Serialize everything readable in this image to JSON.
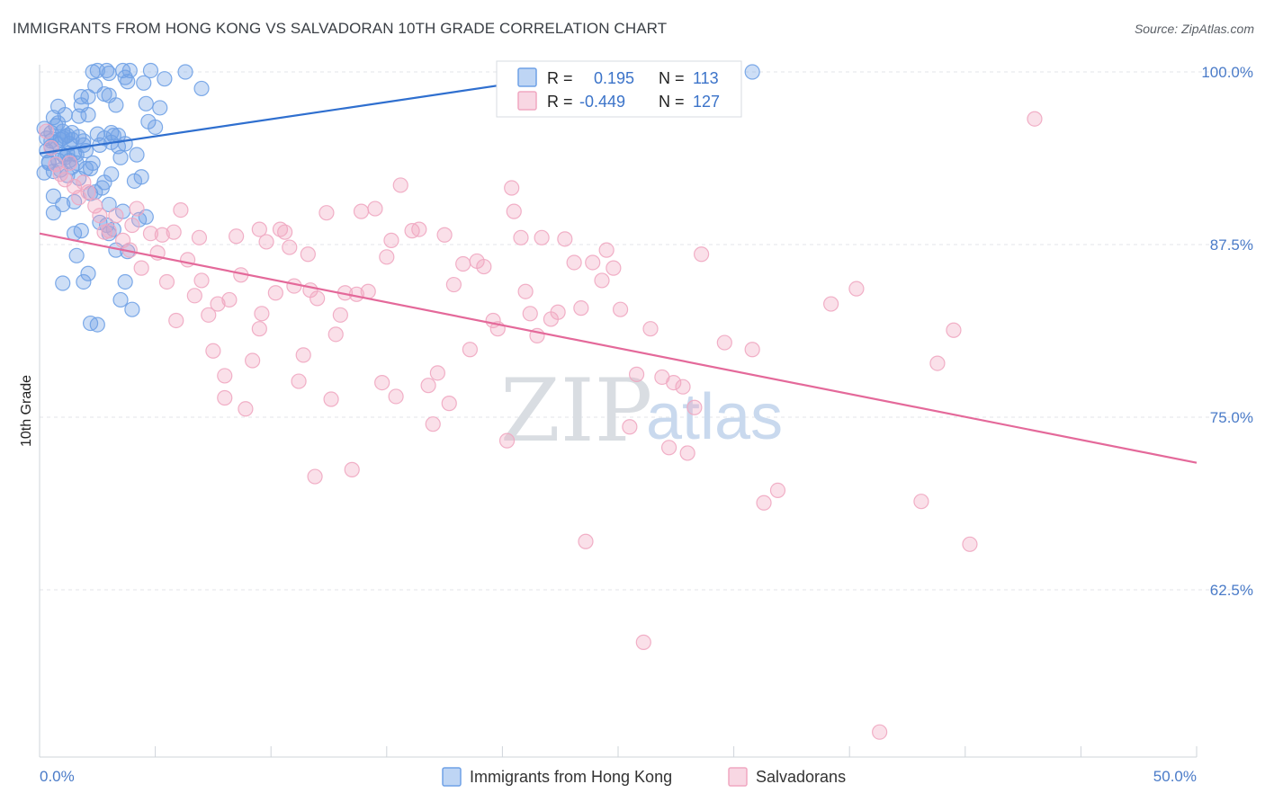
{
  "header": {
    "title": "IMMIGRANTS FROM HONG KONG VS SALVADORAN 10TH GRADE CORRELATION CHART",
    "source": "Source: ZipAtlas.com"
  },
  "watermark": {
    "zip": "ZIP",
    "atlas": "atlas"
  },
  "legend_box": {
    "rows": [
      {
        "r_label": "R =",
        "r_value": "0.195",
        "n_label": "N =",
        "n_value": "113",
        "color": "#6fa1e6"
      },
      {
        "r_label": "R =",
        "r_value": "-0.449",
        "n_label": "N =",
        "n_value": "127",
        "color": "#f0a7c1"
      }
    ]
  },
  "bottom_legend": [
    {
      "label": "Immigrants from Hong Kong",
      "color": "#6fa1e6"
    },
    {
      "label": "Salvadorans",
      "color": "#f0a7c1"
    }
  ],
  "chart_data": {
    "type": "scatter",
    "ylabel": "10th Grade",
    "xlim": [
      0,
      50
    ],
    "ylim": [
      50,
      100
    ],
    "x_ticks_labeled": [
      {
        "value": 0,
        "label": "0.0%"
      },
      {
        "value": 50,
        "label": "50.0%"
      }
    ],
    "y_ticks": [
      {
        "value": 100,
        "label": "100.0%"
      },
      {
        "value": 87.5,
        "label": "87.5%"
      },
      {
        "value": 75,
        "label": "75.0%"
      },
      {
        "value": 62.5,
        "label": "62.5%"
      }
    ],
    "grid": true,
    "series": [
      {
        "name": "Immigrants from Hong Kong",
        "color": "#6fa1e6",
        "trend": {
          "x": [
            0,
            25
          ],
          "y": [
            94.1,
            100.3
          ]
        },
        "points": [
          [
            0.2,
            95.9
          ],
          [
            0.3,
            95.2
          ],
          [
            0.3,
            94.3
          ],
          [
            0.4,
            93.4
          ],
          [
            0.5,
            95.6
          ],
          [
            0.5,
            94.6
          ],
          [
            0.6,
            96.7
          ],
          [
            0.6,
            92.8
          ],
          [
            0.7,
            96.1
          ],
          [
            0.7,
            94.9
          ],
          [
            0.8,
            93.6
          ],
          [
            0.8,
            97.5
          ],
          [
            0.9,
            95.1
          ],
          [
            0.9,
            92.9
          ],
          [
            1.0,
            94.0
          ],
          [
            1.0,
            95.7
          ],
          [
            1.1,
            93.8
          ],
          [
            1.1,
            96.9
          ],
          [
            1.2,
            95.4
          ],
          [
            1.2,
            92.5
          ],
          [
            1.3,
            94.8
          ],
          [
            1.4,
            93.1
          ],
          [
            1.4,
            95.1
          ],
          [
            1.5,
            94.1
          ],
          [
            1.6,
            93.4
          ],
          [
            1.7,
            95.3
          ],
          [
            1.7,
            96.8
          ],
          [
            1.8,
            97.6
          ],
          [
            1.8,
            98.2
          ],
          [
            1.9,
            95.0
          ],
          [
            2.0,
            94.3
          ],
          [
            2.0,
            93.0
          ],
          [
            2.1,
            96.9
          ],
          [
            2.1,
            98.2
          ],
          [
            2.2,
            91.2
          ],
          [
            2.3,
            93.4
          ],
          [
            2.3,
            100.0
          ],
          [
            2.4,
            99.0
          ],
          [
            2.5,
            100.1
          ],
          [
            2.6,
            94.7
          ],
          [
            2.7,
            91.6
          ],
          [
            2.8,
            95.2
          ],
          [
            2.8,
            98.4
          ],
          [
            2.9,
            100.1
          ],
          [
            3.0,
            99.9
          ],
          [
            3.0,
            98.3
          ],
          [
            3.1,
            95.6
          ],
          [
            3.1,
            92.6
          ],
          [
            3.2,
            95.4
          ],
          [
            3.3,
            97.6
          ],
          [
            3.4,
            94.6
          ],
          [
            3.5,
            93.8
          ],
          [
            3.6,
            100.1
          ],
          [
            3.7,
            99.6
          ],
          [
            3.8,
            99.3
          ],
          [
            3.9,
            100.1
          ],
          [
            4.1,
            92.1
          ],
          [
            4.2,
            94.0
          ],
          [
            4.4,
            92.4
          ],
          [
            4.5,
            99.2
          ],
          [
            4.6,
            97.7
          ],
          [
            4.7,
            96.4
          ],
          [
            4.8,
            100.1
          ],
          [
            5.0,
            96.0
          ],
          [
            5.2,
            97.4
          ],
          [
            5.4,
            99.5
          ],
          [
            6.3,
            100.0
          ],
          [
            7.0,
            98.8
          ],
          [
            1.0,
            90.4
          ],
          [
            0.6,
            89.8
          ],
          [
            1.5,
            90.6
          ],
          [
            2.4,
            91.3
          ],
          [
            3.0,
            90.4
          ],
          [
            2.6,
            89.1
          ],
          [
            2.9,
            88.9
          ],
          [
            3.2,
            88.6
          ],
          [
            3.6,
            89.9
          ],
          [
            4.3,
            89.3
          ],
          [
            4.6,
            89.5
          ],
          [
            1.5,
            88.3
          ],
          [
            1.8,
            88.5
          ],
          [
            3.0,
            88.3
          ],
          [
            3.3,
            87.1
          ],
          [
            3.8,
            87.0
          ],
          [
            1.6,
            86.7
          ],
          [
            2.1,
            85.4
          ],
          [
            1.9,
            84.8
          ],
          [
            1.0,
            84.7
          ],
          [
            3.5,
            83.5
          ],
          [
            3.7,
            84.8
          ],
          [
            4.0,
            82.8
          ],
          [
            2.2,
            81.8
          ],
          [
            2.5,
            81.7
          ],
          [
            0.2,
            92.7
          ],
          [
            0.4,
            93.5
          ],
          [
            0.6,
            91.0
          ],
          [
            0.8,
            96.3
          ],
          [
            1.0,
            95.2
          ],
          [
            1.2,
            94.1
          ],
          [
            1.4,
            95.6
          ],
          [
            1.6,
            94.0
          ],
          [
            1.9,
            94.7
          ],
          [
            2.2,
            93.0
          ],
          [
            2.5,
            95.5
          ],
          [
            2.8,
            92.0
          ],
          [
            3.1,
            94.9
          ],
          [
            3.4,
            95.4
          ],
          [
            3.7,
            94.8
          ],
          [
            0.5,
            95.0
          ],
          [
            1.1,
            95.3
          ],
          [
            1.3,
            93.6
          ],
          [
            1.7,
            92.3
          ],
          [
            30.8,
            100.0
          ]
        ]
      },
      {
        "name": "Salvadorans",
        "color": "#f0a7c1",
        "trend": {
          "x": [
            0,
            50
          ],
          "y": [
            88.3,
            71.7
          ]
        },
        "points": [
          [
            0.3,
            95.7
          ],
          [
            0.5,
            94.5
          ],
          [
            0.7,
            93.3
          ],
          [
            0.9,
            92.6
          ],
          [
            1.1,
            92.2
          ],
          [
            1.3,
            93.4
          ],
          [
            1.5,
            91.7
          ],
          [
            1.7,
            90.9
          ],
          [
            1.9,
            92.0
          ],
          [
            2.1,
            91.3
          ],
          [
            2.4,
            90.3
          ],
          [
            2.8,
            88.4
          ],
          [
            3.0,
            88.5
          ],
          [
            3.3,
            89.6
          ],
          [
            3.6,
            87.8
          ],
          [
            3.9,
            87.1
          ],
          [
            4.2,
            90.1
          ],
          [
            4.4,
            85.8
          ],
          [
            4.8,
            88.3
          ],
          [
            5.1,
            86.9
          ],
          [
            5.3,
            88.2
          ],
          [
            5.8,
            88.4
          ],
          [
            5.5,
            84.8
          ],
          [
            6.1,
            90.0
          ],
          [
            6.4,
            86.4
          ],
          [
            6.7,
            83.8
          ],
          [
            7.0,
            84.9
          ],
          [
            6.9,
            88.0
          ],
          [
            7.3,
            82.4
          ],
          [
            7.5,
            79.8
          ],
          [
            7.7,
            83.2
          ],
          [
            8.0,
            76.4
          ],
          [
            8.2,
            83.5
          ],
          [
            8.5,
            88.1
          ],
          [
            8.7,
            85.3
          ],
          [
            8.9,
            75.6
          ],
          [
            9.2,
            79.1
          ],
          [
            9.5,
            81.4
          ],
          [
            9.6,
            82.5
          ],
          [
            9.8,
            87.7
          ],
          [
            10.2,
            84.0
          ],
          [
            10.4,
            88.6
          ],
          [
            10.6,
            88.4
          ],
          [
            10.8,
            87.3
          ],
          [
            11.0,
            84.5
          ],
          [
            11.2,
            77.6
          ],
          [
            11.4,
            79.5
          ],
          [
            11.7,
            84.2
          ],
          [
            11.9,
            70.7
          ],
          [
            12.0,
            83.6
          ],
          [
            12.4,
            89.8
          ],
          [
            12.6,
            76.3
          ],
          [
            12.8,
            81.0
          ],
          [
            13.0,
            82.4
          ],
          [
            13.2,
            84.0
          ],
          [
            13.5,
            71.2
          ],
          [
            13.7,
            83.9
          ],
          [
            13.9,
            89.9
          ],
          [
            14.2,
            84.1
          ],
          [
            14.5,
            90.1
          ],
          [
            14.8,
            77.5
          ],
          [
            15.0,
            86.6
          ],
          [
            15.2,
            87.8
          ],
          [
            15.4,
            76.5
          ],
          [
            15.6,
            91.8
          ],
          [
            16.1,
            88.5
          ],
          [
            16.4,
            88.6
          ],
          [
            16.8,
            77.3
          ],
          [
            17.0,
            74.5
          ],
          [
            17.2,
            78.2
          ],
          [
            17.5,
            88.2
          ],
          [
            17.7,
            76.0
          ],
          [
            17.9,
            84.6
          ],
          [
            18.3,
            86.1
          ],
          [
            18.6,
            79.9
          ],
          [
            18.9,
            86.3
          ],
          [
            19.2,
            85.9
          ],
          [
            19.6,
            82.0
          ],
          [
            19.8,
            81.4
          ],
          [
            20.2,
            73.3
          ],
          [
            20.5,
            89.9
          ],
          [
            20.8,
            88.0
          ],
          [
            21.0,
            84.1
          ],
          [
            21.2,
            82.5
          ],
          [
            21.5,
            80.9
          ],
          [
            21.7,
            88.0
          ],
          [
            22.1,
            82.1
          ],
          [
            22.4,
            82.6
          ],
          [
            22.7,
            87.9
          ],
          [
            23.1,
            86.2
          ],
          [
            23.4,
            82.9
          ],
          [
            23.6,
            66.0
          ],
          [
            23.9,
            86.2
          ],
          [
            24.3,
            84.9
          ],
          [
            24.5,
            87.1
          ],
          [
            24.8,
            85.8
          ],
          [
            25.1,
            82.8
          ],
          [
            25.5,
            74.3
          ],
          [
            26.1,
            58.7
          ],
          [
            26.4,
            81.4
          ],
          [
            26.9,
            77.9
          ],
          [
            27.2,
            72.8
          ],
          [
            27.4,
            77.5
          ],
          [
            27.8,
            77.2
          ],
          [
            28.0,
            72.4
          ],
          [
            28.3,
            75.7
          ],
          [
            28.6,
            86.8
          ],
          [
            29.6,
            80.4
          ],
          [
            30.8,
            79.9
          ],
          [
            31.3,
            68.8
          ],
          [
            31.9,
            69.7
          ],
          [
            34.2,
            83.2
          ],
          [
            35.3,
            84.3
          ],
          [
            36.3,
            52.2
          ],
          [
            38.1,
            68.9
          ],
          [
            38.8,
            78.9
          ],
          [
            39.5,
            81.3
          ],
          [
            40.2,
            65.8
          ],
          [
            43.0,
            96.6
          ],
          [
            25.8,
            78.1
          ],
          [
            20.4,
            91.6
          ],
          [
            9.5,
            88.6
          ],
          [
            11.6,
            86.8
          ],
          [
            5.9,
            82.0
          ],
          [
            8.0,
            78.0
          ],
          [
            4.0,
            88.9
          ],
          [
            2.6,
            89.6
          ]
        ]
      }
    ]
  }
}
